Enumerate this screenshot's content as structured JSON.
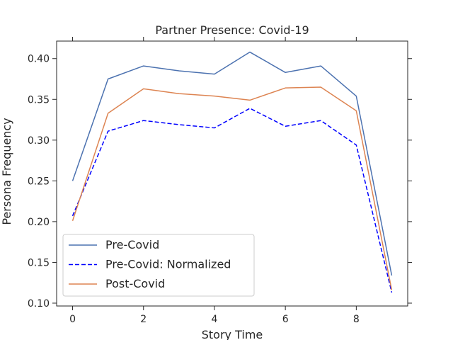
{
  "chart_data": {
    "type": "line",
    "title": "Partner Presence: Covid-19",
    "xlabel": "Story Time",
    "ylabel": "Persona Frequency",
    "x": [
      0,
      1,
      2,
      3,
      4,
      5,
      6,
      7,
      8,
      9
    ],
    "xlim": [
      -0.45,
      9.45
    ],
    "ylim": [
      0.0965,
      0.4215
    ],
    "xticks": [
      0,
      2,
      4,
      6,
      8
    ],
    "yticks": [
      0.1,
      0.15,
      0.2,
      0.25,
      0.3,
      0.35,
      0.4
    ],
    "xtick_labels": [
      "0",
      "2",
      "4",
      "6",
      "8"
    ],
    "ytick_labels": [
      "0.10",
      "0.15",
      "0.20",
      "0.25",
      "0.30",
      "0.35",
      "0.40"
    ],
    "grid": false,
    "legend_position": "lower-left",
    "series": [
      {
        "name": "Pre-Covid",
        "color": "#4c72b0",
        "style": "solid",
        "values": [
          0.25,
          0.375,
          0.391,
          0.385,
          0.381,
          0.408,
          0.383,
          0.391,
          0.354,
          0.134
        ]
      },
      {
        "name": "Pre-Covid: Normalized",
        "color": "#0000ff",
        "style": "dashed",
        "values": [
          0.207,
          0.311,
          0.324,
          0.319,
          0.315,
          0.339,
          0.317,
          0.324,
          0.294,
          0.113
        ]
      },
      {
        "name": "Post-Covid",
        "color": "#dd8452",
        "style": "solid",
        "values": [
          0.201,
          0.333,
          0.363,
          0.357,
          0.354,
          0.349,
          0.364,
          0.365,
          0.336,
          0.116
        ]
      }
    ]
  }
}
